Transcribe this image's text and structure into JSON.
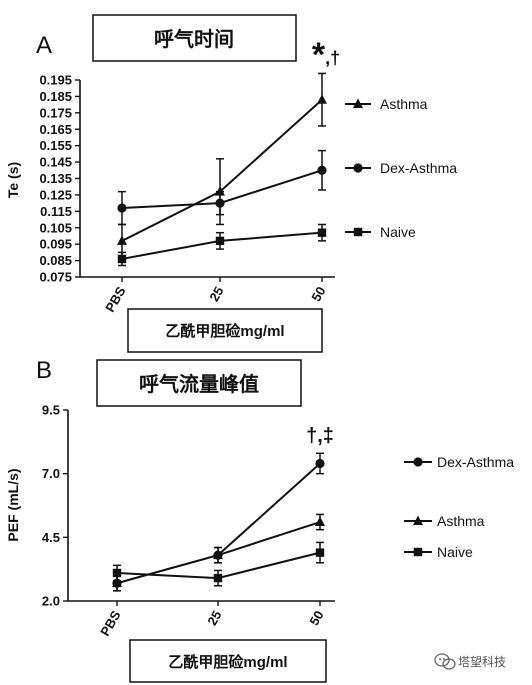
{
  "chart_data": [
    {
      "type": "line",
      "panel_letter": "A",
      "title": "呼气时间",
      "xlabel": "乙酰甲胆硷mg/ml",
      "ylabel": "Te (s)",
      "categories": [
        "PBS",
        "25",
        "50"
      ],
      "ylim": [
        0.075,
        0.195
      ],
      "yticks": [
        "0.075",
        "0.085",
        "0.095",
        "0.105",
        "0.115",
        "0.125",
        "0.135",
        "0.145",
        "0.155",
        "0.165",
        "0.175",
        "0.185",
        "0.195"
      ],
      "annotation": "*,†",
      "legend_position": "right",
      "series": [
        {
          "name": "Asthma",
          "marker": "triangle",
          "values": [
            0.097,
            0.127,
            0.183
          ],
          "errors": [
            0.01,
            0.02,
            0.016
          ]
        },
        {
          "name": "Dex-Asthma",
          "marker": "circle",
          "values": [
            0.117,
            0.12,
            0.14
          ],
          "errors": [
            0.01,
            0.007,
            0.012
          ]
        },
        {
          "name": "Naive",
          "marker": "square",
          "values": [
            0.086,
            0.097,
            0.102
          ],
          "errors": [
            0.004,
            0.005,
            0.005
          ]
        }
      ]
    },
    {
      "type": "line",
      "panel_letter": "B",
      "title": "呼气流量峰值",
      "xlabel": "乙酰甲胆硷mg/ml",
      "ylabel": "PEF (mL/s)",
      "categories": [
        "PBS",
        "25",
        "50"
      ],
      "ylim": [
        2.0,
        9.5
      ],
      "yticks": [
        "2.0",
        "4.5",
        "7.0",
        "9.5"
      ],
      "annotation": "†,‡",
      "legend_position": "right",
      "series": [
        {
          "name": "Dex-Asthma",
          "marker": "circle",
          "values": [
            2.7,
            3.8,
            7.4
          ],
          "errors": [
            0.3,
            0.3,
            0.4
          ]
        },
        {
          "name": "Asthma",
          "marker": "triangle",
          "values": [
            2.7,
            3.8,
            5.1
          ],
          "errors": [
            0.3,
            0.3,
            0.3
          ]
        },
        {
          "name": "Naive",
          "marker": "square",
          "values": [
            3.1,
            2.9,
            3.9
          ],
          "errors": [
            0.3,
            0.3,
            0.4
          ]
        }
      ]
    }
  ],
  "watermark": {
    "text": "塔望科技",
    "icon": "wechat-icon"
  }
}
